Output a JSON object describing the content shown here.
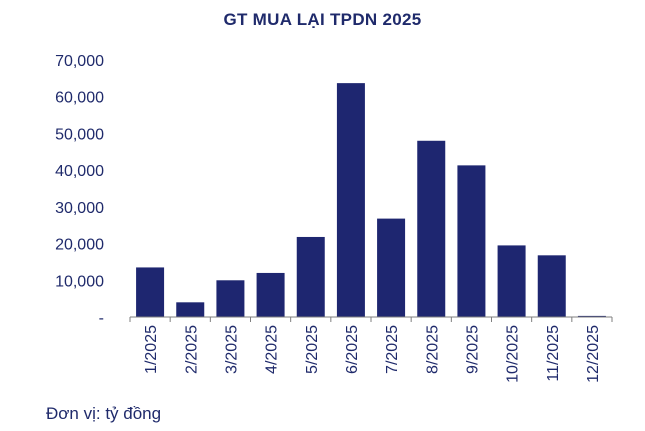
{
  "chart_data": {
    "type": "bar",
    "title": "GT MUA LẠI TPDN 2025",
    "categories": [
      "1/2025",
      "2/2025",
      "3/2025",
      "4/2025",
      "5/2025",
      "6/2025",
      "7/2025",
      "8/2025",
      "9/2025",
      "10/2025",
      "11/2025",
      "12/2025"
    ],
    "values": [
      13500,
      4000,
      10000,
      12000,
      21800,
      63700,
      26800,
      48000,
      41300,
      19500,
      16800,
      300
    ],
    "ylim": [
      0,
      70000
    ],
    "yticks": [
      0,
      10000,
      20000,
      30000,
      40000,
      50000,
      60000,
      70000
    ],
    "ytick_labels": [
      "-",
      "10,000",
      "20,000",
      "30,000",
      "40,000",
      "50,000",
      "60,000",
      "70,000"
    ],
    "xlabel": "",
    "ylabel": "",
    "grid": false,
    "bar_color": "#1e2670",
    "text_color": "#1f2a6b"
  },
  "note": "Đơn vị: tỷ đồng"
}
